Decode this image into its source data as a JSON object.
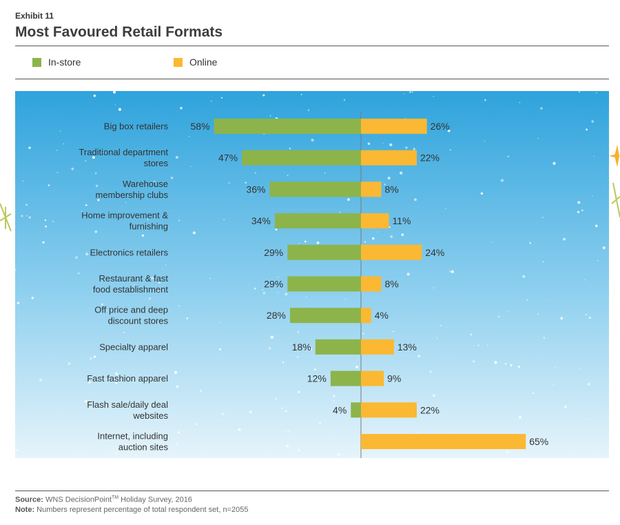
{
  "header": {
    "exhibit": "Exhibit 11",
    "title": "Most Favoured Retail Formats"
  },
  "legend": {
    "instore_label": "In-store",
    "online_label": "Online"
  },
  "colors": {
    "instore": "#8db44a",
    "online": "#fbb832",
    "panel_top": "#2ea3dc",
    "panel_bottom": "#e6f4fb"
  },
  "chart_data": {
    "type": "bar",
    "orientation": "horizontal-diverging",
    "categories": [
      "Big box retailers",
      "Traditional department stores",
      "Warehouse membership clubs",
      "Home improvement & furnishing",
      "Electronics retailers",
      "Restaurant & fast food establishment",
      "Off price and deep discount stores",
      "Specialty apparel",
      "Fast fashion apparel",
      "Flash sale/daily deal websites",
      "Internet, including auction sites"
    ],
    "category_lines": [
      [
        "Big box retailers"
      ],
      [
        "Traditional department",
        "stores"
      ],
      [
        "Warehouse",
        "membership clubs"
      ],
      [
        "Home improvement &",
        "furnishing"
      ],
      [
        "Electronics retailers"
      ],
      [
        "Restaurant & fast",
        "food establishment"
      ],
      [
        "Off price and deep",
        "discount stores"
      ],
      [
        "Specialty apparel"
      ],
      [
        "Fast fashion apparel"
      ],
      [
        "Flash sale/daily deal",
        "websites"
      ],
      [
        "Internet, including",
        "auction sites"
      ]
    ],
    "series": [
      {
        "name": "In-store",
        "values": [
          58,
          47,
          36,
          34,
          29,
          29,
          28,
          18,
          12,
          4,
          null
        ],
        "labels": [
          "58%",
          "47%",
          "36%",
          "34%",
          "29%",
          "29%",
          "28%",
          "18%",
          "12%",
          "4%",
          ""
        ]
      },
      {
        "name": "Online",
        "values": [
          26,
          22,
          8,
          11,
          24,
          8,
          4,
          13,
          9,
          22,
          65
        ],
        "labels": [
          "26%",
          "22%",
          "8%",
          "11%",
          "24%",
          "8%",
          "4%",
          "13%",
          "9%",
          "22%",
          "65%"
        ]
      }
    ],
    "unit": "%",
    "grid": false,
    "legend_position": "top-left"
  },
  "footer": {
    "source_label": "Source:",
    "source_text": "WNS DecisionPoint",
    "source_tm": "TM",
    "source_rest": " Holiday Survey, 2016",
    "note_label": "Note:",
    "note_text": "Numbers represent percentage of total respondent set, n=2055"
  }
}
